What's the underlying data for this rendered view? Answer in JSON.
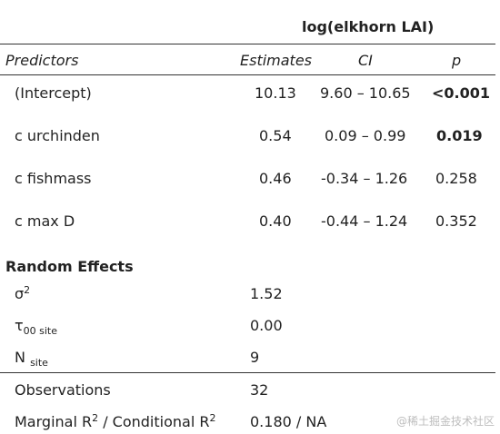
{
  "header": {
    "model_title": "log(elkhorn LAI)",
    "col_predictors": "Predictors",
    "col_estimates": "Estimates",
    "col_ci": "CI",
    "col_p": "p"
  },
  "rows": [
    {
      "predictor": "(Intercept)",
      "estimate": "10.13",
      "ci": "9.60 – 10.65",
      "p": "<0.001",
      "p_bold": true
    },
    {
      "predictor": "c urchinden",
      "estimate": "0.54",
      "ci": "0.09 – 0.99",
      "p": "0.019",
      "p_bold": true
    },
    {
      "predictor": "c fishmass",
      "estimate": "0.46",
      "ci": "-0.34 – 1.26",
      "p": "0.258",
      "p_bold": false
    },
    {
      "predictor": "c max D",
      "estimate": "0.40",
      "ci": "-0.44 – 1.24",
      "p": "0.352",
      "p_bold": false
    }
  ],
  "random_effects": {
    "heading": "Random Effects",
    "sigma_label": "σ",
    "sigma_sup": "2",
    "sigma_value": "1.52",
    "tau_label": "τ",
    "tau_sub": "00 site",
    "tau_value": "0.00",
    "n_label": "N",
    "n_sub": "site",
    "n_value": "9"
  },
  "footer": {
    "obs_label": "Observations",
    "obs_value": "32",
    "r2_label_a": "Marginal R",
    "r2_sup_a": "2",
    "r2_label_b": " / Conditional R",
    "r2_sup_b": "2",
    "r2_value": "0.180 / NA"
  },
  "watermark": "@稀土掘金技术社区"
}
